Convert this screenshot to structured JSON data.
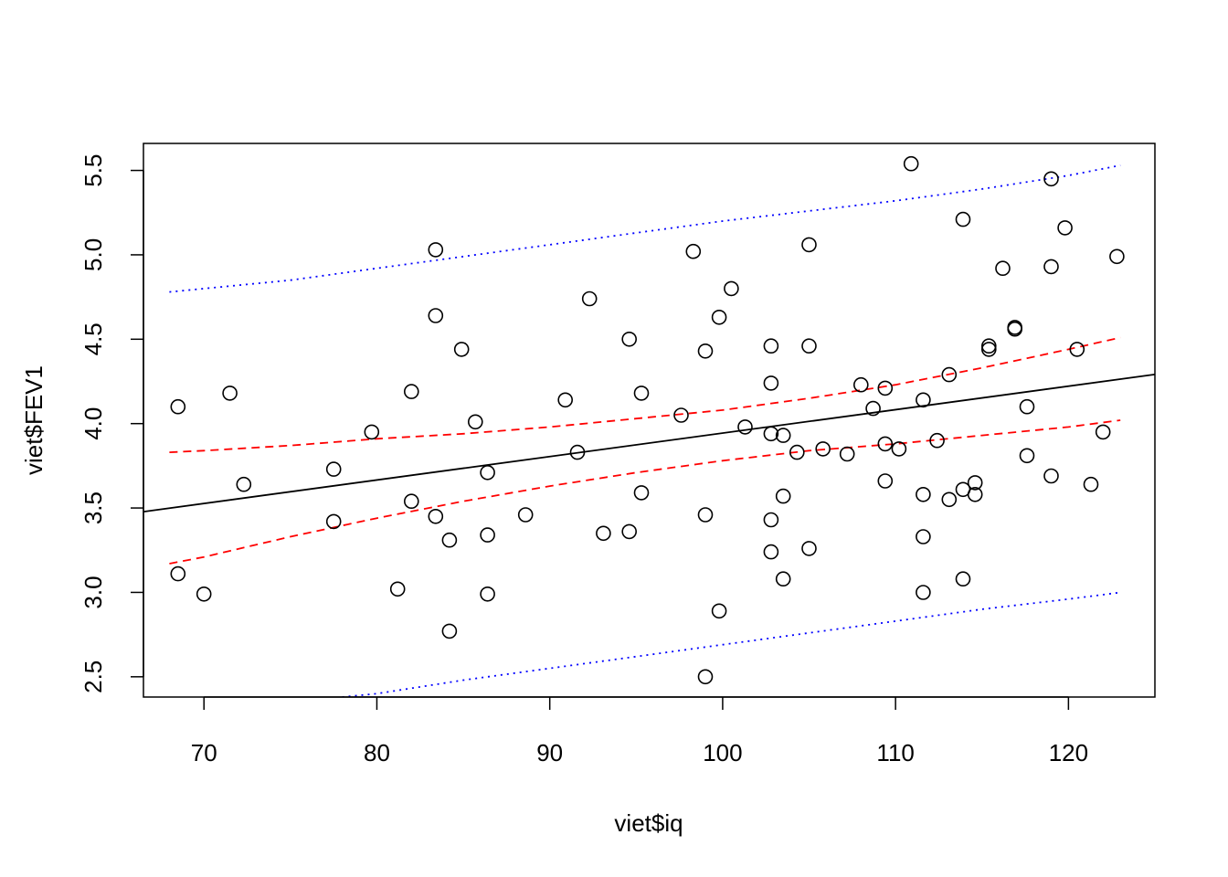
{
  "chart_data": {
    "type": "scatter",
    "title": "",
    "xlabel": "viet$iq",
    "ylabel": "viet$FEV1",
    "xlim": [
      66.5,
      125
    ],
    "ylim": [
      2.38,
      5.66
    ],
    "xticks": [
      70,
      80,
      90,
      100,
      110,
      120
    ],
    "yticks": [
      2.5,
      3.0,
      3.5,
      4.0,
      4.5,
      5.0,
      5.5
    ],
    "xtick_labels": [
      "70",
      "80",
      "90",
      "100",
      "110",
      "120"
    ],
    "ytick_labels": [
      "2.5",
      "3.0",
      "3.5",
      "4.0",
      "4.5",
      "5.0",
      "5.5"
    ],
    "grid": false,
    "legend": "none",
    "points": [
      [
        68.5,
        4.1
      ],
      [
        68.5,
        3.11
      ],
      [
        70.0,
        2.99
      ],
      [
        71.5,
        4.18
      ],
      [
        72.3,
        3.64
      ],
      [
        77.5,
        3.73
      ],
      [
        77.5,
        3.42
      ],
      [
        79.7,
        3.95
      ],
      [
        81.2,
        3.02
      ],
      [
        82.0,
        4.19
      ],
      [
        82.0,
        3.54
      ],
      [
        83.4,
        5.03
      ],
      [
        83.4,
        4.64
      ],
      [
        83.4,
        3.45
      ],
      [
        84.2,
        3.31
      ],
      [
        84.2,
        2.77
      ],
      [
        84.9,
        4.44
      ],
      [
        85.7,
        4.01
      ],
      [
        86.4,
        3.71
      ],
      [
        86.4,
        3.34
      ],
      [
        86.4,
        2.99
      ],
      [
        88.6,
        3.46
      ],
      [
        90.9,
        4.14
      ],
      [
        91.6,
        3.83
      ],
      [
        92.3,
        4.74
      ],
      [
        93.1,
        3.35
      ],
      [
        94.6,
        4.5
      ],
      [
        94.6,
        3.36
      ],
      [
        95.3,
        4.18
      ],
      [
        95.3,
        3.59
      ],
      [
        97.6,
        4.05
      ],
      [
        98.3,
        5.02
      ],
      [
        99.0,
        4.43
      ],
      [
        99.0,
        3.46
      ],
      [
        99.0,
        2.5
      ],
      [
        99.8,
        4.63
      ],
      [
        99.8,
        2.89
      ],
      [
        100.5,
        4.8
      ],
      [
        101.3,
        3.98
      ],
      [
        102.8,
        4.46
      ],
      [
        102.8,
        4.24
      ],
      [
        102.8,
        3.94
      ],
      [
        102.8,
        3.43
      ],
      [
        102.8,
        3.24
      ],
      [
        103.5,
        3.93
      ],
      [
        103.5,
        3.57
      ],
      [
        103.5,
        3.08
      ],
      [
        104.3,
        3.83
      ],
      [
        105.0,
        5.06
      ],
      [
        105.0,
        4.46
      ],
      [
        105.0,
        3.26
      ],
      [
        105.8,
        3.85
      ],
      [
        107.2,
        3.82
      ],
      [
        108.0,
        4.23
      ],
      [
        108.7,
        4.09
      ],
      [
        109.4,
        4.21
      ],
      [
        109.4,
        3.88
      ],
      [
        109.4,
        3.66
      ],
      [
        110.2,
        3.85
      ],
      [
        110.9,
        5.54
      ],
      [
        111.6,
        4.14
      ],
      [
        111.6,
        3.58
      ],
      [
        111.6,
        3.33
      ],
      [
        111.6,
        3.0
      ],
      [
        112.4,
        3.9
      ],
      [
        113.1,
        4.29
      ],
      [
        113.1,
        3.55
      ],
      [
        113.9,
        5.21
      ],
      [
        113.9,
        3.61
      ],
      [
        113.9,
        3.08
      ],
      [
        114.6,
        3.65
      ],
      [
        114.6,
        3.58
      ],
      [
        115.4,
        4.46
      ],
      [
        115.4,
        4.44
      ],
      [
        116.2,
        4.92
      ],
      [
        116.9,
        4.57
      ],
      [
        116.9,
        4.56
      ],
      [
        117.6,
        4.1
      ],
      [
        117.6,
        3.81
      ],
      [
        119.0,
        5.45
      ],
      [
        119.0,
        4.93
      ],
      [
        119.0,
        3.69
      ],
      [
        119.8,
        5.16
      ],
      [
        120.5,
        4.44
      ],
      [
        121.3,
        3.64
      ],
      [
        122.0,
        3.95
      ],
      [
        122.8,
        4.99
      ]
    ],
    "lines": [
      {
        "kind": "fit",
        "color": "#000000",
        "dash": "none",
        "x": [
          66.5,
          125
        ],
        "y": [
          3.478,
          4.291
        ]
      },
      {
        "kind": "confidence_upper",
        "color": "#ff0000",
        "dash": "dashed",
        "x": [
          68,
          70,
          75,
          80,
          85,
          90,
          95,
          100,
          105,
          110,
          115,
          120,
          123
        ],
        "y": [
          3.83,
          3.84,
          3.87,
          3.91,
          3.94,
          3.98,
          4.03,
          4.08,
          4.15,
          4.23,
          4.33,
          4.44,
          4.51
        ]
      },
      {
        "kind": "confidence_lower",
        "color": "#ff0000",
        "dash": "dashed",
        "x": [
          68,
          70,
          75,
          80,
          85,
          90,
          95,
          100,
          105,
          110,
          115,
          120,
          123
        ],
        "y": [
          3.17,
          3.21,
          3.33,
          3.44,
          3.54,
          3.63,
          3.71,
          3.78,
          3.84,
          3.88,
          3.93,
          3.98,
          4.02
        ]
      },
      {
        "kind": "prediction_upper",
        "color": "#0000ff",
        "dash": "dotted",
        "x": [
          68,
          75,
          80,
          85,
          90,
          95,
          100,
          105,
          110,
          115,
          120,
          123
        ],
        "y": [
          4.78,
          4.85,
          4.92,
          4.99,
          5.06,
          5.13,
          5.2,
          5.26,
          5.32,
          5.39,
          5.47,
          5.53
        ]
      },
      {
        "kind": "prediction_lower",
        "color": "#0000ff",
        "dash": "dotted",
        "x": [
          78,
          80,
          85,
          90,
          95,
          100,
          105,
          110,
          115,
          120,
          123
        ],
        "y": [
          2.38,
          2.4,
          2.48,
          2.55,
          2.62,
          2.69,
          2.76,
          2.83,
          2.9,
          2.96,
          3.0
        ]
      }
    ]
  }
}
